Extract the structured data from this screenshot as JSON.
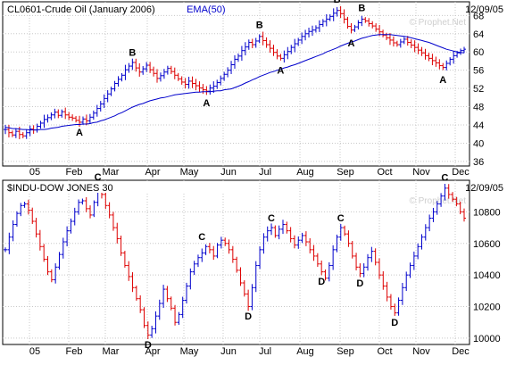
{
  "chart_data": [
    {
      "type": "ohlc",
      "legend": [
        {
          "text": "CL0601-Crude Oil (January 2006)",
          "color": "#000000"
        },
        {
          "text": "EMA(50)",
          "color": "#0000cc"
        }
      ],
      "date": "12/09/05",
      "watermark": "© Prophet.Net",
      "yticks": [
        36,
        40,
        44,
        48,
        52,
        56,
        60,
        64,
        68
      ],
      "ylim": [
        35,
        71
      ],
      "months": [
        "05",
        "Feb",
        "Mar",
        "Apr",
        "May",
        "Jun",
        "Jul",
        "Aug",
        "Sep",
        "Oct",
        "Nov",
        "Dec"
      ],
      "colors": {
        "up": "#0000cc",
        "down": "#dd0000",
        "ema": "#0000cc"
      },
      "close": [
        43.0,
        42.3,
        41.8,
        42.6,
        41.9,
        41.6,
        42.3,
        43.1,
        42.9,
        43.7,
        44.4,
        45.2,
        45.6,
        46.2,
        46.8,
        46.1,
        46.9,
        46.2,
        45.7,
        45.5,
        45.0,
        44.6,
        45.3,
        44.9,
        45.7,
        46.6,
        47.6,
        48.6,
        49.8,
        50.8,
        51.9,
        53.1,
        54.0,
        54.9,
        56.1,
        56.9,
        57.7,
        56.5,
        55.6,
        56.3,
        57.1,
        56.1,
        55.3,
        54.2,
        54.8,
        55.6,
        56.4,
        55.7,
        54.9,
        54.1,
        53.4,
        52.9,
        53.6,
        53.1,
        52.6,
        52.1,
        51.7,
        51.4,
        52.1,
        52.5,
        53.3,
        54.2,
        55.1,
        56.0,
        57.2,
        58.4,
        59.1,
        60.3,
        61.1,
        62.1,
        61.6,
        62.4,
        63.4,
        62.5,
        61.6,
        60.8,
        59.9,
        59.1,
        58.6,
        59.4,
        60.1,
        61.0,
        61.8,
        62.6,
        63.4,
        64.0,
        64.5,
        64.8,
        65.3,
        66.0,
        66.7,
        67.2,
        67.8,
        68.5,
        69.1,
        68.4,
        67.2,
        65.6,
        64.8,
        65.5,
        66.4,
        67.2,
        66.8,
        66.2,
        65.7,
        65.0,
        64.4,
        63.7,
        63.1,
        62.6,
        62.0,
        61.6,
        62.2,
        62.8,
        62.1,
        61.5,
        61.0,
        60.4,
        59.8,
        59.2,
        58.6,
        58.1,
        57.6,
        57.0,
        56.6,
        57.5,
        58.4,
        59.2,
        59.8,
        60.3,
        60.6
      ],
      "ema": [
        43.5,
        43.4,
        43.2,
        43.2,
        43.1,
        43.0,
        43.0,
        42.9,
        42.9,
        42.9,
        43.0,
        43.0,
        43.1,
        43.3,
        43.4,
        43.5,
        43.7,
        43.8,
        43.9,
        44.0,
        44.1,
        44.1,
        44.2,
        44.2,
        44.3,
        44.5,
        44.6,
        44.9,
        45.1,
        45.4,
        45.7,
        46.0,
        46.4,
        46.7,
        47.1,
        47.5,
        47.9,
        48.2,
        48.5,
        48.7,
        49.0,
        49.3,
        49.5,
        49.7,
        49.9,
        50.0,
        50.2,
        50.4,
        50.6,
        50.7,
        50.8,
        50.9,
        51.0,
        51.1,
        51.2,
        51.2,
        51.3,
        51.3,
        51.3,
        51.4,
        51.5,
        51.5,
        51.7,
        51.8,
        51.9,
        52.2,
        52.5,
        52.8,
        53.2,
        53.5,
        53.9,
        54.2,
        54.6,
        54.9,
        55.2,
        55.5,
        55.7,
        56.0,
        56.2,
        56.5,
        56.7,
        57.0,
        57.2,
        57.5,
        57.8,
        58.1,
        58.4,
        58.7,
        59.0,
        59.3,
        59.6,
        60.0,
        60.3,
        60.6,
        60.9,
        61.3,
        61.6,
        61.9,
        62.2,
        62.4,
        62.7,
        63.0,
        63.2,
        63.4,
        63.6,
        63.7,
        63.8,
        63.8,
        63.8,
        63.8,
        63.7,
        63.6,
        63.5,
        63.4,
        63.3,
        63.1,
        62.9,
        62.7,
        62.5,
        62.3,
        62.1,
        61.8,
        61.5,
        61.2,
        60.9,
        60.6,
        60.4,
        60.2,
        60.0,
        59.9,
        59.8
      ],
      "annotations": [
        {
          "label": "A",
          "index": 21,
          "value": 43.6,
          "pos": "below"
        },
        {
          "label": "B",
          "index": 36,
          "value": 58.8,
          "pos": "above"
        },
        {
          "label": "A",
          "index": 57,
          "value": 50.1,
          "pos": "below"
        },
        {
          "label": "B",
          "index": 72,
          "value": 64.8,
          "pos": "above"
        },
        {
          "label": "A",
          "index": 78,
          "value": 57.2,
          "pos": "below"
        },
        {
          "label": "B",
          "index": 94,
          "value": 70.4,
          "pos": "above"
        },
        {
          "label": "A",
          "index": 98,
          "value": 63.2,
          "pos": "below"
        },
        {
          "label": "B",
          "index": 101,
          "value": 68.6,
          "pos": "above"
        },
        {
          "label": "A",
          "index": 124,
          "value": 55.2,
          "pos": "below"
        }
      ]
    },
    {
      "type": "ohlc",
      "legend": [
        {
          "text": "$INDU-DOW JONES 30",
          "color": "#000000"
        }
      ],
      "date": "12/09/05",
      "watermark": "© Prophet.Net",
      "yticks": [
        10000,
        10200,
        10400,
        10600,
        10800
      ],
      "ylim": [
        9960,
        11000
      ],
      "months": [
        "05",
        "Feb",
        "Mar",
        "Apr",
        "May",
        "Jun",
        "Jul",
        "Aug",
        "Sep",
        "Oct",
        "Nov",
        "Dec"
      ],
      "colors": {
        "up": "#0000cc",
        "down": "#dd0000"
      },
      "close": [
        10560,
        10640,
        10720,
        10790,
        10840,
        10850,
        10810,
        10740,
        10660,
        10580,
        10500,
        10420,
        10370,
        10450,
        10530,
        10610,
        10680,
        10740,
        10800,
        10860,
        10870,
        10820,
        10780,
        10860,
        10940,
        10910,
        10840,
        10780,
        10700,
        10630,
        10540,
        10460,
        10390,
        10320,
        10250,
        10180,
        10080,
        10020,
        10060,
        10140,
        10220,
        10310,
        10250,
        10190,
        10100,
        10150,
        10240,
        10330,
        10420,
        10470,
        10510,
        10540,
        10580,
        10560,
        10520,
        10590,
        10620,
        10600,
        10560,
        10500,
        10430,
        10350,
        10280,
        10200,
        10320,
        10460,
        10560,
        10640,
        10680,
        10700,
        10650,
        10690,
        10720,
        10680,
        10630,
        10590,
        10620,
        10650,
        10610,
        10560,
        10520,
        10470,
        10420,
        10380,
        10460,
        10560,
        10640,
        10700,
        10660,
        10600,
        10520,
        10450,
        10410,
        10450,
        10510,
        10550,
        10480,
        10400,
        10330,
        10260,
        10200,
        10160,
        10240,
        10320,
        10400,
        10460,
        10520,
        10580,
        10640,
        10700,
        10760,
        10800,
        10850,
        10900,
        10950,
        10910,
        10880,
        10850,
        10800,
        10760
      ],
      "annotations": [
        {
          "label": "C",
          "index": 24,
          "value": 10990,
          "pos": "above"
        },
        {
          "label": "D",
          "index": 37,
          "value": 9995,
          "pos": "below"
        },
        {
          "label": "C",
          "index": 51,
          "value": 10610,
          "pos": "above"
        },
        {
          "label": "D",
          "index": 63,
          "value": 10175,
          "pos": "below"
        },
        {
          "label": "C",
          "index": 69,
          "value": 10730,
          "pos": "above"
        },
        {
          "label": "D",
          "index": 82,
          "value": 10395,
          "pos": "below"
        },
        {
          "label": "C",
          "index": 87,
          "value": 10730,
          "pos": "above"
        },
        {
          "label": "D",
          "index": 92,
          "value": 10385,
          "pos": "below"
        },
        {
          "label": "D",
          "index": 101,
          "value": 10135,
          "pos": "below"
        },
        {
          "label": "C",
          "index": 114,
          "value": 10985,
          "pos": "above"
        }
      ]
    }
  ]
}
